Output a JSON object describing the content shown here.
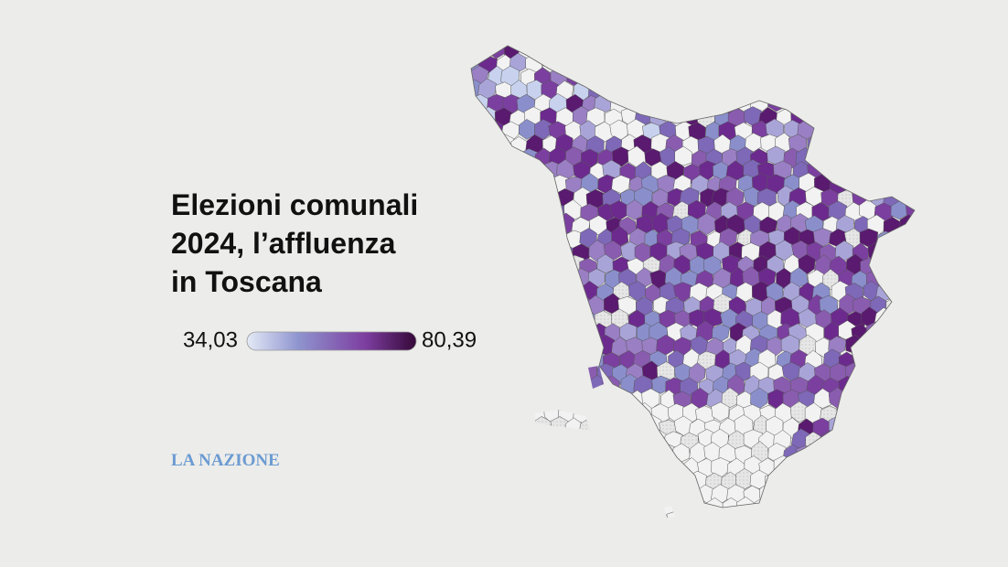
{
  "title_lines": [
    "Elezioni comunali",
    "2024, l’affluenza",
    "in Toscana"
  ],
  "legend": {
    "min_label": "34,03",
    "max_label": "80,39"
  },
  "brand": "LA NAZIONE"
}
